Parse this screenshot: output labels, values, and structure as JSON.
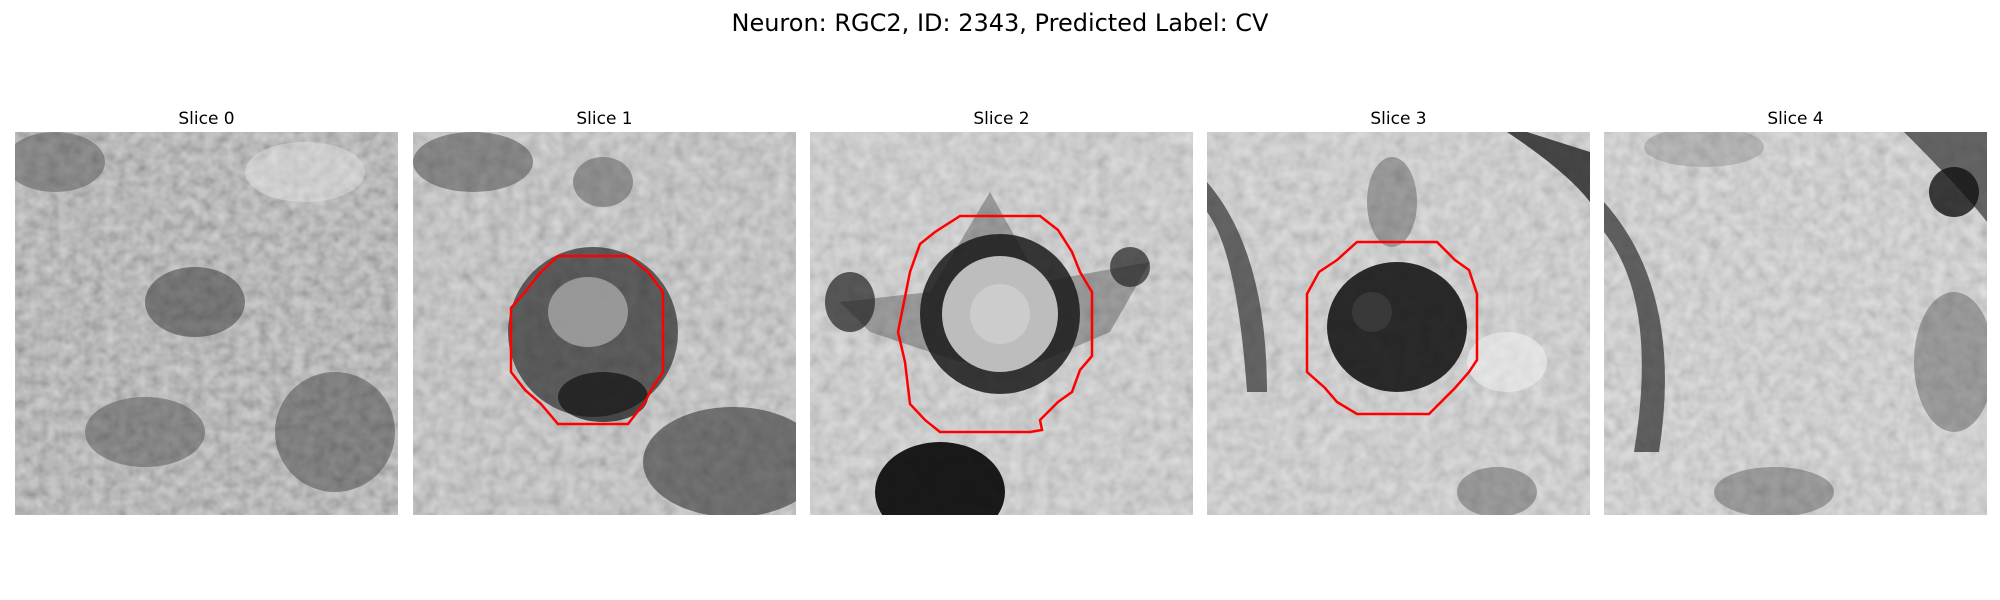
{
  "figure": {
    "title": "Neuron: RGC2, ID: 2343, Predicted Label: CV"
  },
  "colors": {
    "contour": "#ff0000",
    "background": "#ffffff"
  },
  "panels": [
    {
      "title": "Slice 0",
      "has_contour": false
    },
    {
      "title": "Slice 1",
      "has_contour": true
    },
    {
      "title": "Slice 2",
      "has_contour": true
    },
    {
      "title": "Slice 3",
      "has_contour": true
    },
    {
      "title": "Slice 4",
      "has_contour": false
    }
  ]
}
